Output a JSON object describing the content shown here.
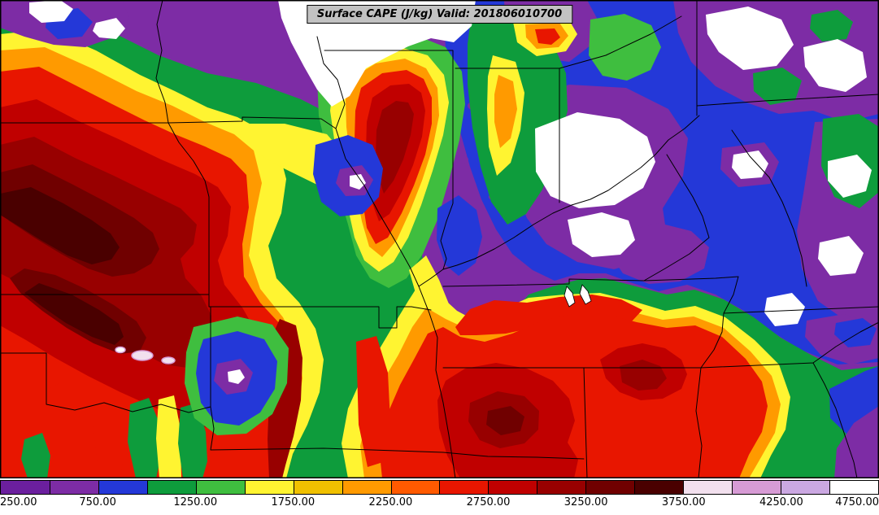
{
  "title": {
    "text": "Surface CAPE (J/kg) Valid: 201806010700"
  },
  "colorbar": {
    "min": 250,
    "max": 4750,
    "units": "J/kg",
    "tick_labels": [
      "250.00",
      "750.00",
      "1250.00",
      "1750.00",
      "2250.00",
      "2750.00",
      "3250.00",
      "3750.00",
      "4250.00",
      "4750.00"
    ],
    "tick_values": [
      250,
      750,
      1250,
      1750,
      2250,
      2750,
      3250,
      3750,
      4250,
      4750
    ],
    "segments": [
      {
        "from": 250,
        "to": 500,
        "color": "#6B1F9E"
      },
      {
        "from": 500,
        "to": 750,
        "color": "#7D2CA5"
      },
      {
        "from": 750,
        "to": 1000,
        "color": "#2438D8"
      },
      {
        "from": 1000,
        "to": 1250,
        "color": "#0E9C3C"
      },
      {
        "from": 1250,
        "to": 1500,
        "color": "#3FBE3F"
      },
      {
        "from": 1500,
        "to": 1750,
        "color": "#FFF431"
      },
      {
        "from": 1750,
        "to": 2000,
        "color": "#F0C000"
      },
      {
        "from": 2000,
        "to": 2250,
        "color": "#FF9A00"
      },
      {
        "from": 2250,
        "to": 2500,
        "color": "#FF5A00"
      },
      {
        "from": 2500,
        "to": 2750,
        "color": "#E81600"
      },
      {
        "from": 2750,
        "to": 3000,
        "color": "#C00000"
      },
      {
        "from": 3000,
        "to": 3250,
        "color": "#980000"
      },
      {
        "from": 3250,
        "to": 3500,
        "color": "#700000"
      },
      {
        "from": 3500,
        "to": 3750,
        "color": "#4A0000"
      },
      {
        "from": 3750,
        "to": 4000,
        "color": "#F2E0EE"
      },
      {
        "from": 4000,
        "to": 4250,
        "color": "#D79BD5"
      },
      {
        "from": 4250,
        "to": 4500,
        "color": "#CBA8E2"
      },
      {
        "from": 4500,
        "to": 4750,
        "color": "#FFFFFF"
      }
    ]
  },
  "palette": {
    "purple": "#7D2CA5",
    "blue": "#2438D8",
    "green": "#0E9C3C",
    "green2": "#3FBE3F",
    "yellow": "#FFF431",
    "gold": "#F0C000",
    "orange": "#FF9A00",
    "orangered": "#FF5A00",
    "red": "#E81600",
    "firebrick": "#C00000",
    "darkred": "#980000",
    "maroon": "#700000",
    "maroon2": "#4A0000",
    "palepink": "#F2E0EE",
    "plum": "#D79BD5",
    "white": "#FFFFFF",
    "boundary": "#000000",
    "titlebox_bg": "#C2C2C2"
  }
}
